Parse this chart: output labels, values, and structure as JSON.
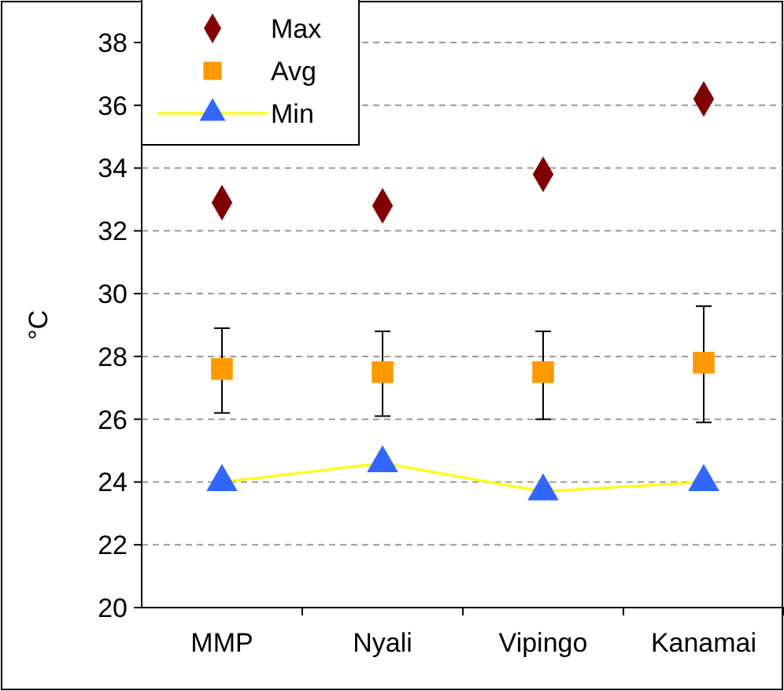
{
  "chart_data": {
    "type": "scatter",
    "ylabel": "°C",
    "categories": [
      "MMP",
      "Nyali",
      "Vipingo",
      "Kanamai"
    ],
    "series": [
      {
        "name": "Max",
        "marker": "diamond",
        "color": "#800000",
        "values": [
          32.9,
          32.8,
          33.8,
          36.2
        ]
      },
      {
        "name": "Avg",
        "marker": "square",
        "color": "#ff9900",
        "values": [
          27.6,
          27.5,
          27.5,
          27.8
        ],
        "errors": [
          [
            26.2,
            28.9
          ],
          [
            26.1,
            28.8
          ],
          [
            26.0,
            28.8
          ],
          [
            25.9,
            29.6
          ]
        ]
      },
      {
        "name": "Min",
        "type": "line",
        "marker": "triangle",
        "color": "#ffff00",
        "colors": [
          "#3366ff",
          "#3366ff",
          "#3366ff",
          "#3366ff"
        ],
        "values": [
          24.0,
          24.6,
          23.7,
          24.0
        ]
      }
    ],
    "ylim": [
      20,
      38
    ],
    "yticks": [
      20,
      22,
      24,
      26,
      28,
      30,
      32,
      34,
      36,
      38
    ],
    "grid": "y",
    "legend": "top left"
  }
}
